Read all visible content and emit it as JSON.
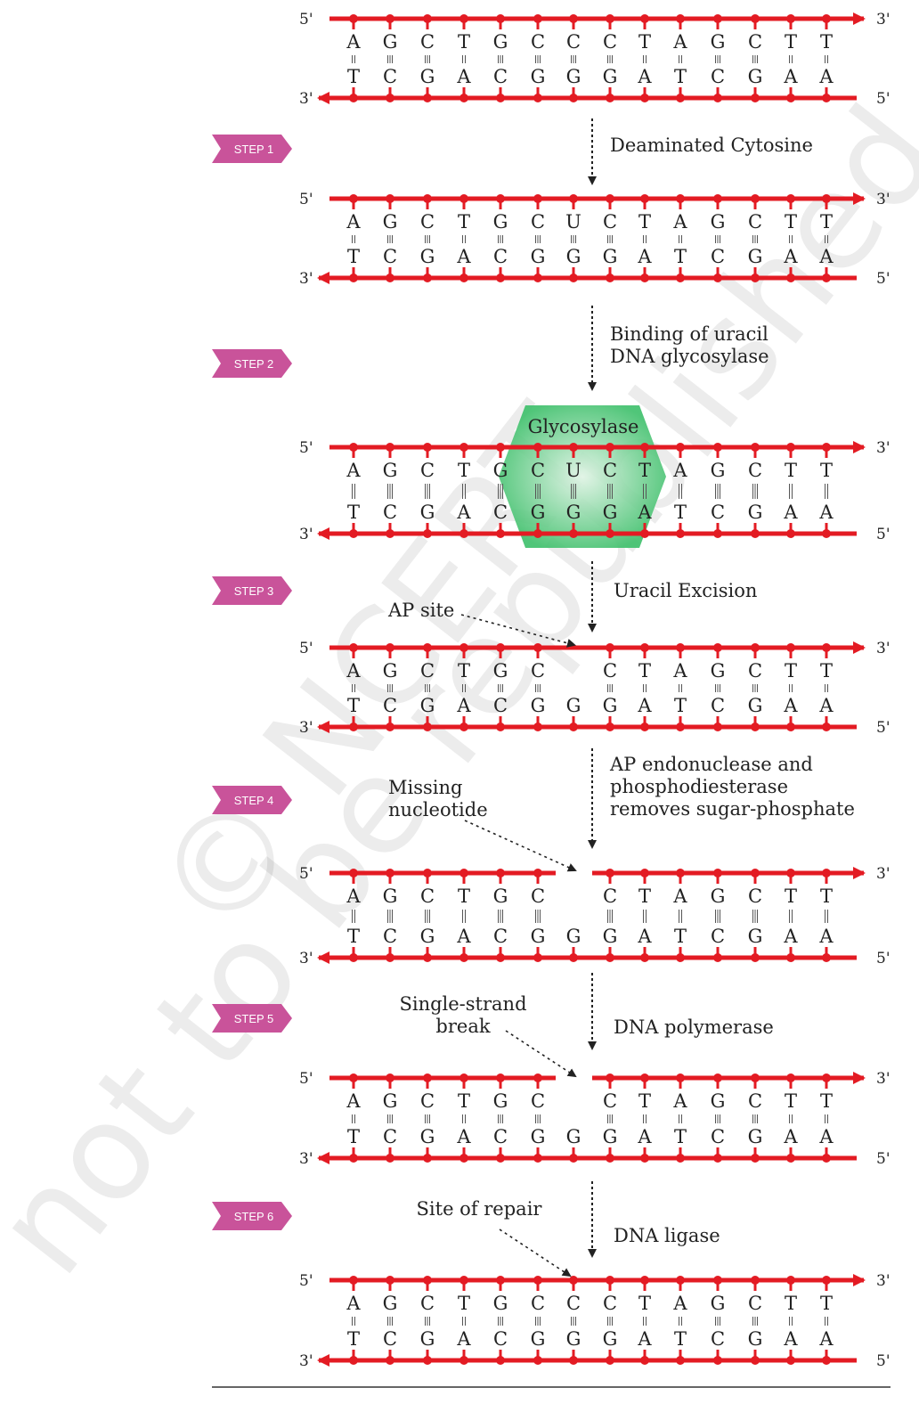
{
  "end_labels": {
    "five_prime": "5'",
    "three_prime": "3'"
  },
  "colors": {
    "backbone": "#e31b23",
    "step_badge": "#c9539a",
    "glycosylase": "#3dbf6a",
    "highlight_base": "#2a2a8a"
  },
  "steps": [
    {
      "label": "STEP 1"
    },
    {
      "label": "STEP 2"
    },
    {
      "label": "STEP 3"
    },
    {
      "label": "STEP 4"
    },
    {
      "label": "STEP 5"
    },
    {
      "label": "STEP 6"
    }
  ],
  "transitions": [
    {
      "lines": [
        "Deaminated Cytosine"
      ]
    },
    {
      "lines": [
        "Binding of uracil",
        "DNA glycosylase"
      ]
    },
    {
      "lines": [
        "Uracil Excision"
      ]
    },
    {
      "lines": [
        "AP endonuclease and",
        "phosphodiesterase",
        "removes sugar-phosphate"
      ]
    },
    {
      "lines": [
        "DNA polymerase"
      ]
    },
    {
      "lines": [
        "DNA ligase"
      ]
    }
  ],
  "site_labels": [
    {
      "lines": [
        "AP site"
      ]
    },
    {
      "lines": [
        "Missing",
        "nucleotide"
      ]
    },
    {
      "lines": [
        "Single-strand",
        "break"
      ]
    },
    {
      "lines": [
        "Site of repair"
      ]
    }
  ],
  "enzyme_label": "Glycosylase",
  "watermark": "© NCERT not to be republished",
  "helices": [
    {
      "top": [
        "A",
        "G",
        "C",
        "T",
        "G",
        "C",
        "C",
        "C",
        "T",
        "A",
        "G",
        "C",
        "T",
        "T"
      ],
      "bottom": [
        "T",
        "C",
        "G",
        "A",
        "C",
        "G",
        "G",
        "G",
        "A",
        "T",
        "C",
        "G",
        "A",
        "A"
      ],
      "pairs": [
        "2",
        "3",
        "3",
        "2",
        "3",
        "3",
        "3",
        "3",
        "2",
        "2",
        "3",
        "3",
        "2",
        "2"
      ],
      "highlight": 6
    },
    {
      "top": [
        "A",
        "G",
        "C",
        "T",
        "G",
        "C",
        "U",
        "C",
        "T",
        "A",
        "G",
        "C",
        "T",
        "T"
      ],
      "bottom": [
        "T",
        "C",
        "G",
        "A",
        "C",
        "G",
        "G",
        "G",
        "A",
        "T",
        "C",
        "G",
        "A",
        "A"
      ],
      "pairs": [
        "2",
        "3",
        "3",
        "2",
        "3",
        "3",
        "3",
        "3",
        "2",
        "2",
        "3",
        "3",
        "2",
        "2"
      ]
    },
    {
      "top": [
        "A",
        "G",
        "C",
        "T",
        "G",
        "C",
        "U",
        "C",
        "T",
        "A",
        "G",
        "C",
        "T",
        "T"
      ],
      "bottom": [
        "T",
        "C",
        "G",
        "A",
        "C",
        "G",
        "G",
        "G",
        "A",
        "T",
        "C",
        "G",
        "A",
        "A"
      ],
      "pairs": [
        "2",
        "3",
        "3",
        "2",
        "3",
        "3",
        "3",
        "3",
        "2",
        "2",
        "3",
        "3",
        "2",
        "2"
      ]
    },
    {
      "top": [
        "A",
        "G",
        "C",
        "T",
        "G",
        "C",
        "",
        "C",
        "T",
        "A",
        "G",
        "C",
        "T",
        "T"
      ],
      "bottom": [
        "T",
        "C",
        "G",
        "A",
        "C",
        "G",
        "G",
        "G",
        "A",
        "T",
        "C",
        "G",
        "A",
        "A"
      ],
      "pairs": [
        "2",
        "3",
        "3",
        "2",
        "3",
        "3",
        "0",
        "3",
        "2",
        "2",
        "3",
        "3",
        "2",
        "2"
      ]
    },
    {
      "top": [
        "A",
        "G",
        "C",
        "T",
        "G",
        "C",
        "",
        "C",
        "T",
        "A",
        "G",
        "C",
        "T",
        "T"
      ],
      "bottom": [
        "T",
        "C",
        "G",
        "A",
        "C",
        "G",
        "G",
        "G",
        "A",
        "T",
        "C",
        "G",
        "A",
        "A"
      ],
      "pairs": [
        "2",
        "3",
        "3",
        "2",
        "3",
        "3",
        "0",
        "3",
        "2",
        "2",
        "3",
        "3",
        "2",
        "2"
      ],
      "gap": true
    },
    {
      "top": [
        "A",
        "G",
        "C",
        "T",
        "G",
        "C",
        "",
        "C",
        "T",
        "A",
        "G",
        "C",
        "T",
        "T"
      ],
      "bottom": [
        "T",
        "C",
        "G",
        "A",
        "C",
        "G",
        "G",
        "G",
        "A",
        "T",
        "C",
        "G",
        "A",
        "A"
      ],
      "pairs": [
        "2",
        "3",
        "3",
        "2",
        "3",
        "3",
        "0",
        "3",
        "2",
        "2",
        "3",
        "3",
        "2",
        "2"
      ],
      "gap": true
    },
    {
      "top": [
        "A",
        "G",
        "C",
        "T",
        "G",
        "C",
        "C",
        "C",
        "T",
        "A",
        "G",
        "C",
        "T",
        "T"
      ],
      "bottom": [
        "T",
        "C",
        "G",
        "A",
        "C",
        "G",
        "G",
        "G",
        "A",
        "T",
        "C",
        "G",
        "A",
        "A"
      ],
      "pairs": [
        "2",
        "3",
        "3",
        "2",
        "3",
        "3",
        "3",
        "3",
        "2",
        "2",
        "3",
        "3",
        "2",
        "2"
      ]
    }
  ]
}
